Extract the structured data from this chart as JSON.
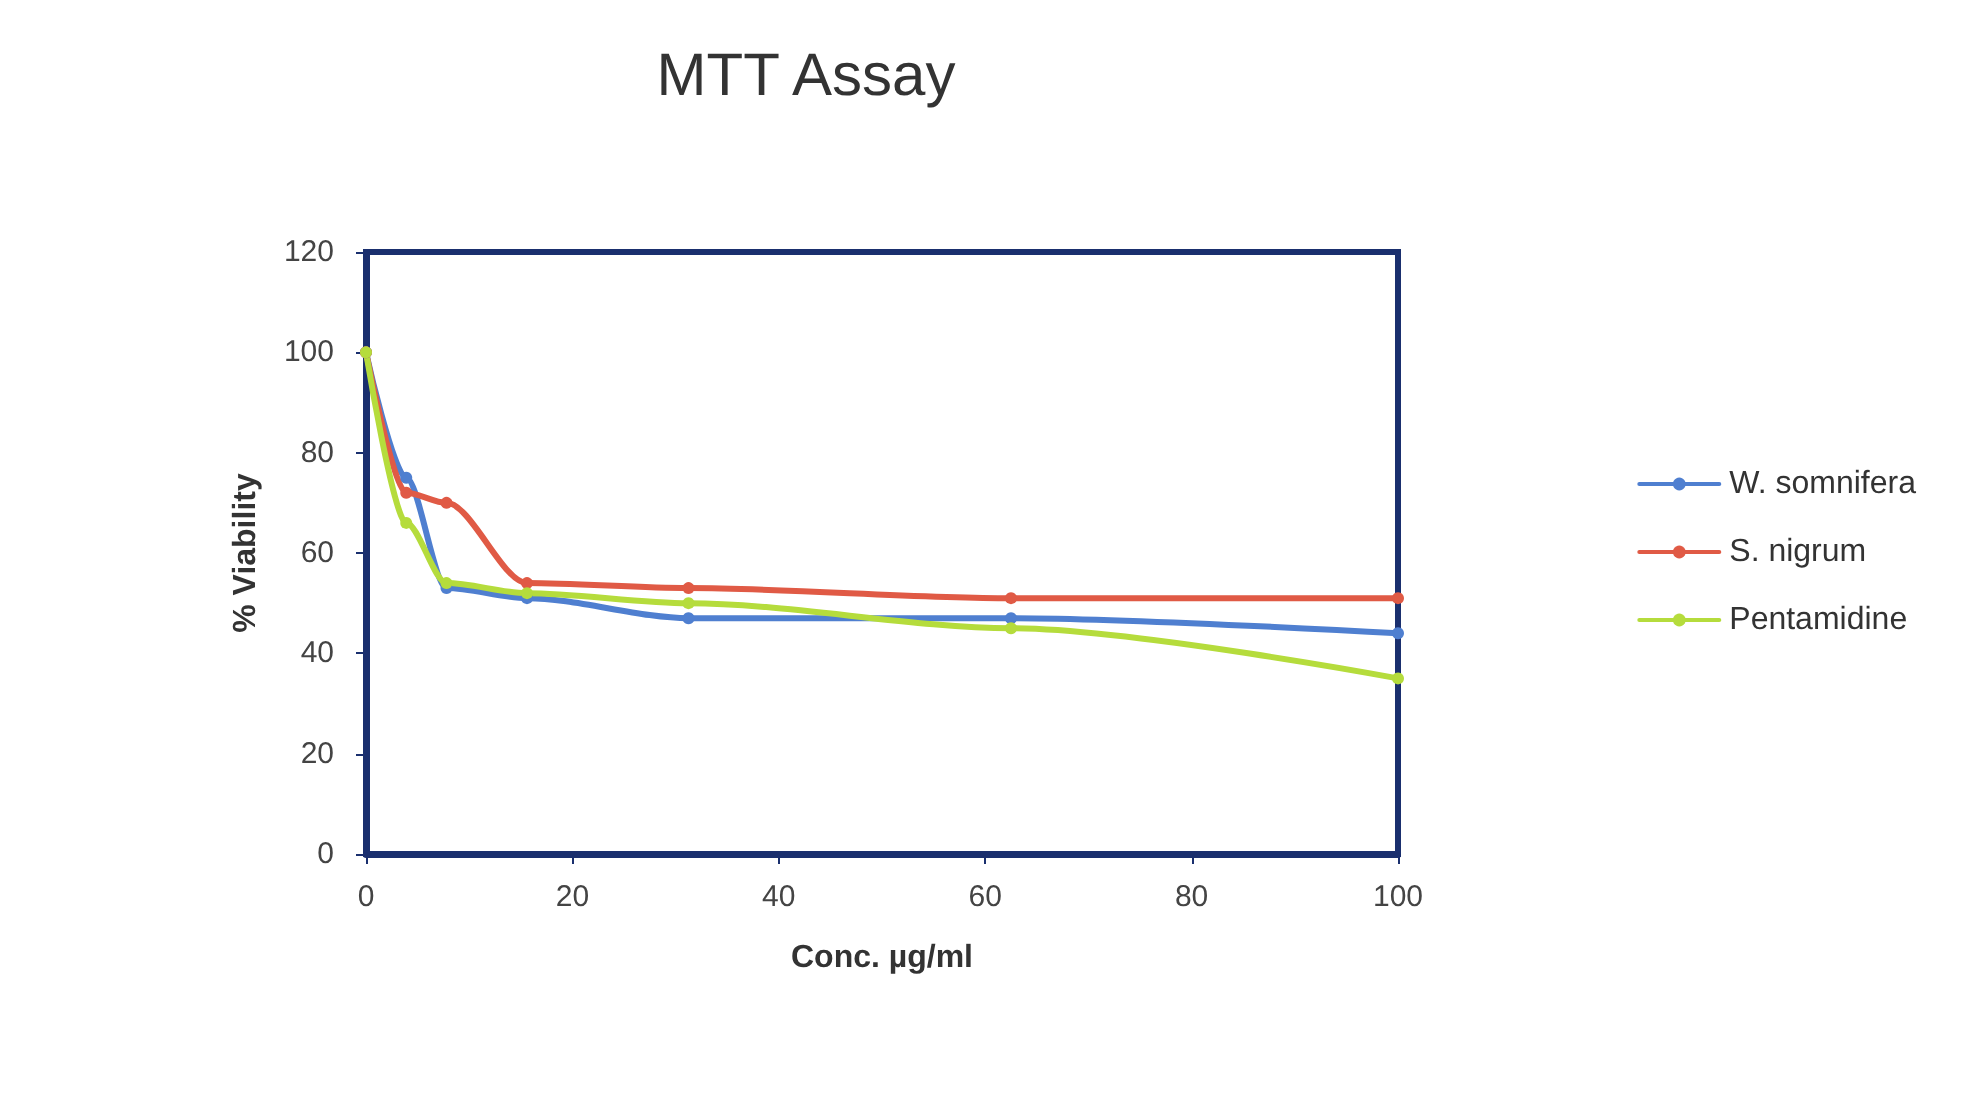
{
  "chart_data": {
    "type": "line",
    "title": "MTT Assay",
    "xlabel": "Conc. µg/ml",
    "ylabel": "% Viability",
    "x": [
      0,
      3.9,
      7.8,
      15.6,
      31.25,
      62.5,
      100
    ],
    "series": [
      {
        "name": "W. somnifera",
        "color": "#4f7fd0",
        "values": [
          100,
          75,
          53,
          51,
          47,
          47,
          44
        ]
      },
      {
        "name": "S. nigrum",
        "color": "#e05a45",
        "values": [
          100,
          72,
          70,
          54,
          53,
          51,
          51
        ]
      },
      {
        "name": "Pentamidine",
        "color": "#b5dc3c",
        "values": [
          100,
          66,
          54,
          52,
          50,
          45,
          35
        ]
      }
    ],
    "xlim": [
      0,
      100
    ],
    "xticks": [
      0,
      20,
      40,
      60,
      80,
      100
    ],
    "ylim": [
      0,
      120
    ],
    "yticks": [
      0,
      20,
      40,
      60,
      80,
      100,
      120
    ],
    "grid": false,
    "legend": "right",
    "marker": "circle"
  }
}
